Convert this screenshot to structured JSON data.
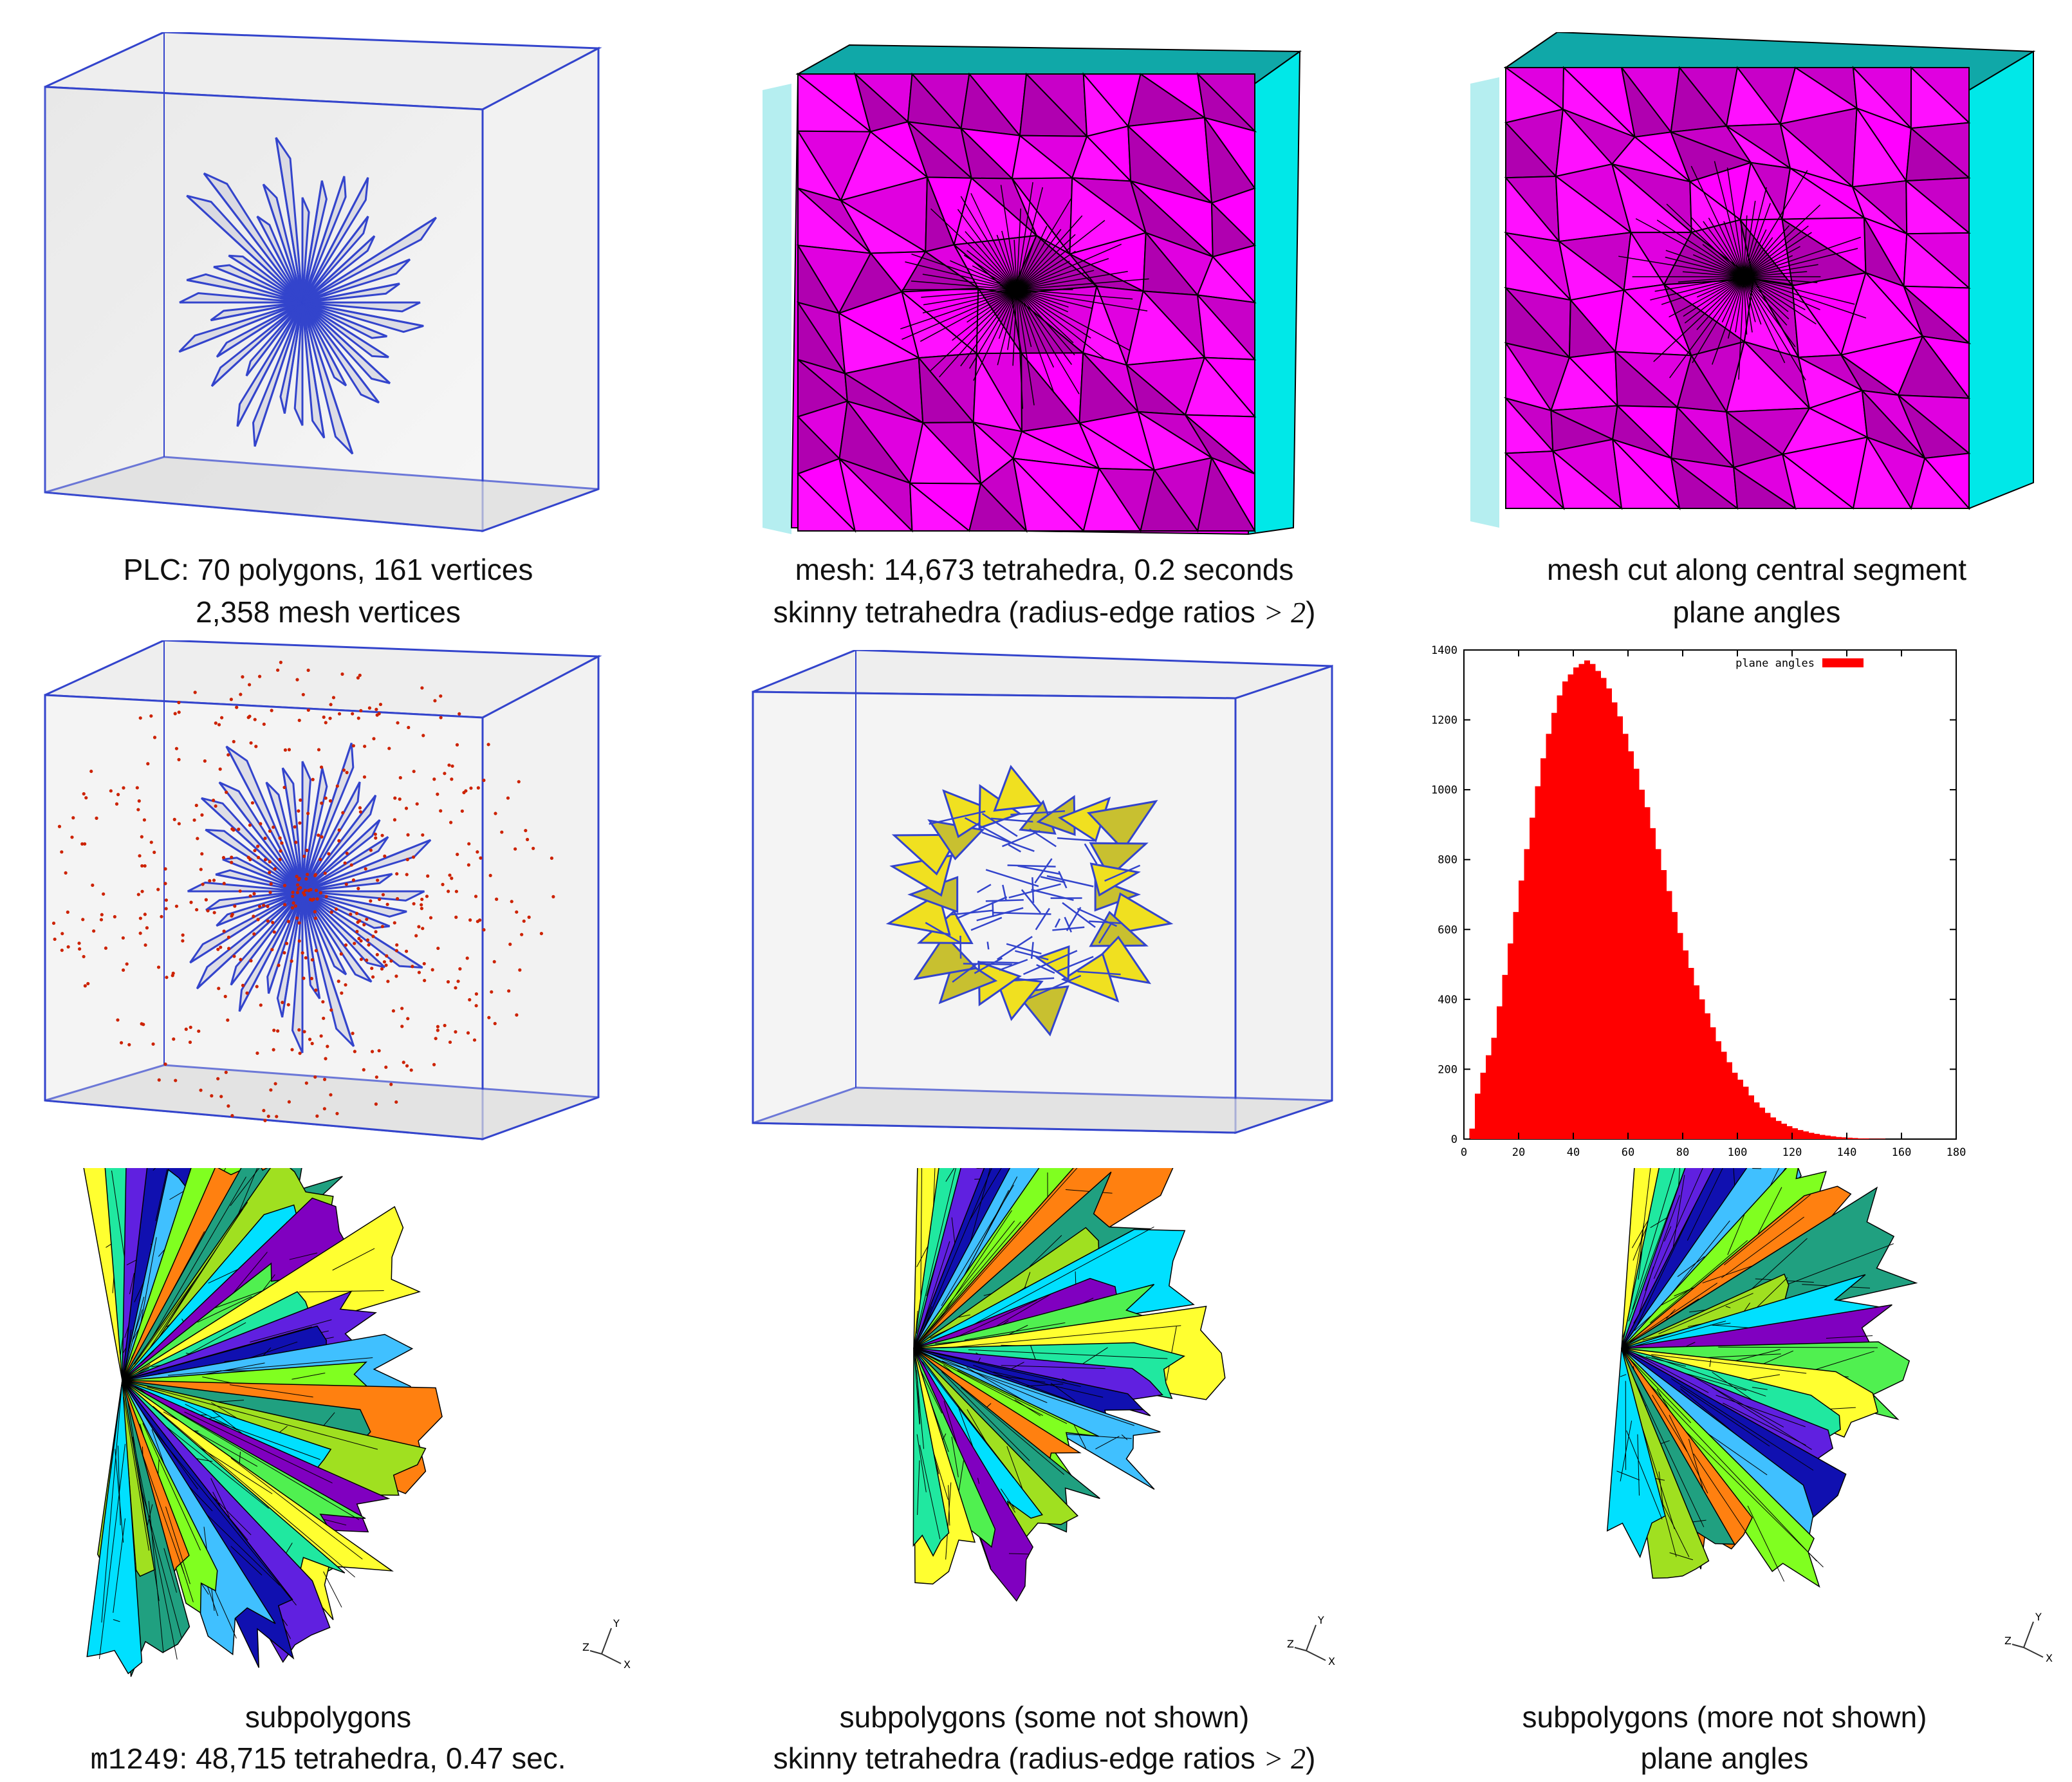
{
  "captions": {
    "r1c1_line1": "PLC: 70 polygons, 161 vertices",
    "r1c2_line1": "mesh: 14,673 tetrahedra, 0.2 seconds",
    "r1c3_line1": "mesh cut along central segment",
    "r1_line2_a": "2,358 mesh vertices",
    "r1_line2_b_prefix": "skinny tetrahedra (radius-edge ratios ",
    "r1_line2_b_op": "> 2",
    "r1_line2_b_suffix": ")",
    "r1_line2_c": "plane angles",
    "r3c1_line1": "subpolygons",
    "r3c2_line1": "subpolygons (some not shown)",
    "r3c3_line1": "subpolygons (more not shown)",
    "r3_line2_a_code": "m1249",
    "r3_line2_a_rest": ": 48,715 tetrahedra, 0.47 sec.",
    "r3_line2_b_prefix": "skinny tetrahedra (radius-edge ratios ",
    "r3_line2_b_op": "> 2",
    "r3_line2_b_suffix": ")",
    "r3_line2_c": "plane angles"
  },
  "axis_triad": {
    "y": "Y",
    "z": "Z",
    "x": "X"
  },
  "colors": {
    "magenta": "#ff00ff",
    "cyan": "#00ffff",
    "teal": "#00a0a0",
    "wire": "#3344cc",
    "points": "#cc2200",
    "yellow": "#f0e020",
    "histogram": "#ff0000"
  },
  "chart_data": {
    "type": "bar",
    "title": "",
    "legend": [
      "plane angles"
    ],
    "legend_position": "top-right",
    "xlim": [
      0,
      180
    ],
    "ylim": [
      0,
      1400
    ],
    "xticks": [
      0,
      20,
      40,
      60,
      80,
      100,
      120,
      140,
      160,
      180
    ],
    "yticks": [
      0,
      200,
      400,
      600,
      800,
      1000,
      1200,
      1400
    ],
    "series": [
      {
        "name": "plane angles",
        "x": [
          0,
          2,
          4,
          6,
          8,
          10,
          12,
          14,
          16,
          18,
          20,
          22,
          24,
          26,
          28,
          30,
          32,
          34,
          36,
          38,
          40,
          42,
          44,
          46,
          48,
          50,
          52,
          54,
          56,
          58,
          60,
          62,
          64,
          66,
          68,
          70,
          72,
          74,
          76,
          78,
          80,
          82,
          84,
          86,
          88,
          90,
          92,
          94,
          96,
          98,
          100,
          102,
          104,
          106,
          108,
          110,
          112,
          114,
          116,
          118,
          120,
          122,
          124,
          126,
          128,
          130,
          132,
          134,
          136,
          138,
          140,
          142,
          144,
          146,
          148,
          150,
          152,
          154,
          156,
          158,
          160,
          162,
          164,
          166,
          168,
          170,
          172,
          174,
          176,
          178
        ],
        "values": [
          0,
          30,
          130,
          190,
          240,
          290,
          380,
          470,
          560,
          650,
          740,
          830,
          920,
          1010,
          1090,
          1160,
          1220,
          1270,
          1310,
          1330,
          1350,
          1360,
          1370,
          1360,
          1340,
          1320,
          1290,
          1250,
          1210,
          1160,
          1110,
          1060,
          1000,
          950,
          890,
          830,
          770,
          710,
          650,
          590,
          540,
          490,
          440,
          400,
          360,
          320,
          280,
          250,
          220,
          190,
          170,
          150,
          125,
          105,
          90,
          75,
          62,
          52,
          44,
          37,
          31,
          26,
          22,
          18,
          15,
          12,
          10,
          8,
          6,
          5,
          4,
          3,
          2,
          2,
          1,
          1,
          1,
          0,
          0,
          0,
          0,
          0,
          0,
          0,
          0,
          0,
          0,
          0,
          0,
          0
        ]
      }
    ]
  }
}
